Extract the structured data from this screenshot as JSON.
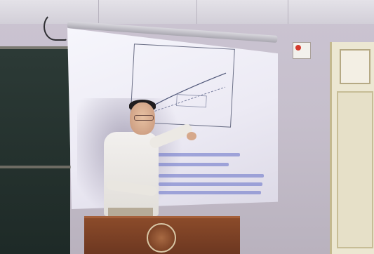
{
  "scene": {
    "description_type": "classroom lecture photo",
    "screen": {
      "plot_tick_labels": [],
      "slide_text_lines": []
    },
    "colors": {
      "podium": "#7b3f25",
      "screen": "#eceaf4",
      "wall": "#c6bfcc",
      "chalkboard": "#24312e",
      "shirt": "#ece9e4",
      "text_highlight": "#5e6ec6"
    }
  }
}
